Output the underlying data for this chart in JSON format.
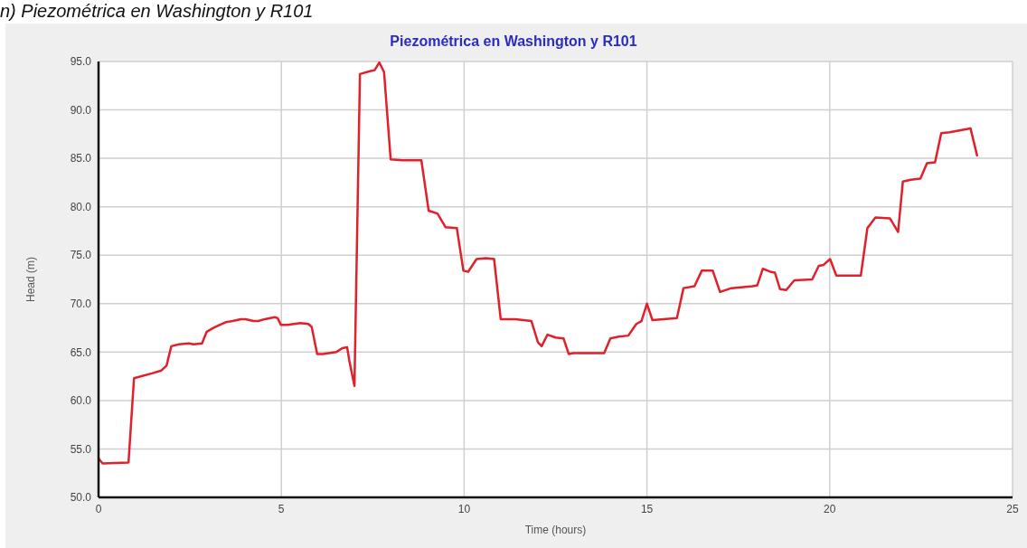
{
  "chart_data": {
    "type": "line",
    "title": "Piezométrica en Washington y R101",
    "xlabel": "Time (hours)",
    "ylabel": "Head (m)",
    "annotations": [
      "n) Piezométrica en Washington y R101"
    ],
    "x": [
      0,
      0.11,
      0.82,
      0.97,
      1.46,
      1.72,
      1.86,
      1.99,
      2.2,
      2.47,
      2.6,
      2.83,
      2.96,
      3.14,
      3.31,
      3.49,
      3.67,
      3.89,
      4.02,
      4.24,
      4.37,
      4.55,
      4.82,
      4.9,
      4.99,
      5.17,
      5.35,
      5.52,
      5.74,
      5.83,
      5.98,
      6.14,
      6.5,
      6.67,
      6.8,
      6.86,
      7.0,
      7.15,
      7.42,
      7.55,
      7.68,
      7.81,
      7.99,
      8.3,
      8.83,
      9.03,
      9.27,
      9.49,
      9.8,
      9.98,
      10.11,
      10.34,
      10.6,
      10.82,
      11.0,
      11.4,
      11.84,
      12.02,
      12.12,
      12.28,
      12.5,
      12.72,
      12.86,
      12.99,
      13.83,
      14.0,
      14.23,
      14.49,
      14.71,
      14.85,
      15.0,
      15.15,
      15.82,
      16.0,
      16.3,
      16.5,
      16.8,
      17.0,
      17.31,
      17.89,
      18.02,
      18.17,
      18.37,
      18.5,
      18.64,
      18.81,
      19.03,
      19.52,
      19.7,
      19.83,
      20.01,
      20.18,
      20.85,
      21.03,
      21.25,
      21.65,
      21.87,
      22.0,
      22.22,
      22.48,
      22.66,
      22.88,
      23.05,
      23.28,
      23.85,
      24.03
    ],
    "series": [
      {
        "color": "#e0202a",
        "values": [
          54.0,
          53.5,
          53.6,
          62.3,
          62.8,
          63.1,
          63.6,
          65.6,
          65.8,
          65.9,
          65.8,
          65.9,
          67.1,
          67.5,
          67.8,
          68.1,
          68.2,
          68.4,
          68.4,
          68.2,
          68.2,
          68.4,
          68.6,
          68.5,
          67.8,
          67.8,
          67.9,
          68.0,
          67.9,
          67.6,
          64.8,
          64.8,
          65.0,
          65.4,
          65.5,
          64.1,
          61.5,
          93.7,
          94.0,
          94.1,
          94.9,
          93.9,
          84.9,
          84.8,
          84.8,
          79.6,
          79.3,
          77.9,
          77.8,
          73.4,
          73.3,
          74.6,
          74.7,
          74.6,
          68.4,
          68.4,
          68.2,
          66.0,
          65.6,
          66.8,
          66.5,
          66.4,
          64.8,
          64.9,
          64.9,
          66.4,
          66.6,
          66.7,
          67.9,
          68.2,
          70.0,
          68.3,
          68.5,
          71.6,
          71.8,
          73.4,
          73.4,
          71.2,
          71.6,
          71.8,
          71.9,
          73.6,
          73.3,
          73.2,
          71.5,
          71.4,
          72.4,
          72.5,
          73.9,
          74.0,
          74.6,
          72.9,
          72.9,
          77.8,
          78.9,
          78.8,
          77.4,
          82.6,
          82.8,
          82.9,
          84.5,
          84.6,
          87.6,
          87.7,
          88.1,
          85.3
        ]
      }
    ],
    "xlim": [
      0,
      25
    ],
    "xticks": [
      0,
      5,
      10,
      15,
      20,
      25
    ],
    "ylim": [
      50,
      95
    ],
    "yticks": [
      {
        "value": 50,
        "label": "50.0"
      },
      {
        "value": 55,
        "label": "55.0"
      },
      {
        "value": 60,
        "label": "60.0"
      },
      {
        "value": 65,
        "label": "65.0"
      },
      {
        "value": 70,
        "label": "70.0"
      },
      {
        "value": 75,
        "label": "75.0"
      },
      {
        "value": 80,
        "label": "80.0"
      },
      {
        "value": 85,
        "label": "85.0"
      },
      {
        "value": 90,
        "label": "90.0"
      },
      {
        "value": 95,
        "label": "95.0"
      }
    ],
    "grid": true,
    "marker": "none",
    "line_style": "solid"
  }
}
